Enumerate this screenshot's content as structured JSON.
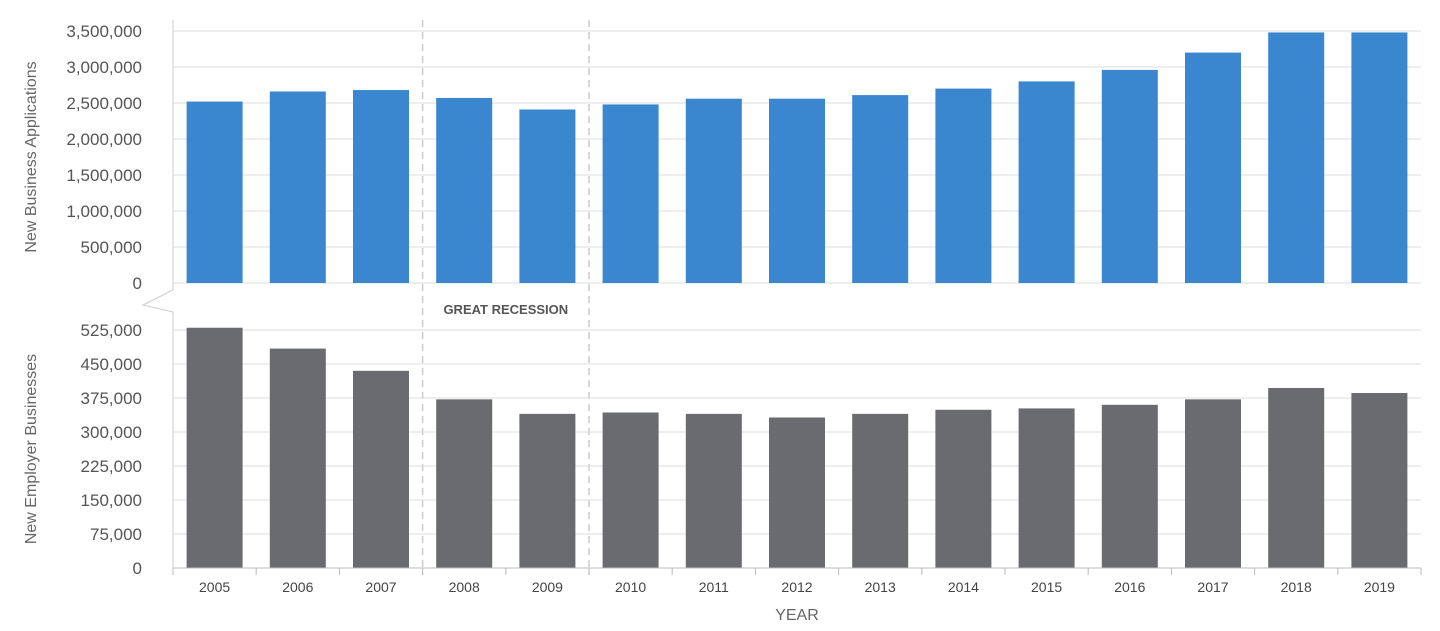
{
  "chart_data": [
    {
      "type": "bar",
      "ylabel": "New Business Applications",
      "ylim": [
        0,
        3500000
      ],
      "yticks": [
        0,
        500000,
        1000000,
        1500000,
        2000000,
        2500000,
        3000000,
        3500000
      ],
      "ytick_labels": [
        "0",
        "500,000",
        "1,000,000",
        "1,500,000",
        "2,000,000",
        "2,500,000",
        "3,000,000",
        "3,500,000"
      ],
      "categories": [
        "2005",
        "2006",
        "2007",
        "2008",
        "2009",
        "2010",
        "2011",
        "2012",
        "2013",
        "2014",
        "2015",
        "2016",
        "2017",
        "2018",
        "2019"
      ],
      "values": [
        2520000,
        2660000,
        2680000,
        2570000,
        2410000,
        2480000,
        2560000,
        2560000,
        2610000,
        2700000,
        2800000,
        2960000,
        3200000,
        3480000,
        3480000
      ],
      "color": "#3a87d0",
      "grid": true
    },
    {
      "type": "bar",
      "ylabel": "New Employer Businesses",
      "ylim": [
        0,
        525000
      ],
      "yticks": [
        0,
        75000,
        150000,
        225000,
        300000,
        375000,
        450000,
        525000
      ],
      "ytick_labels": [
        "0",
        "75,000",
        "150,000",
        "225,000",
        "300,000",
        "375,000",
        "450,000",
        "525,000"
      ],
      "categories": [
        "2005",
        "2006",
        "2007",
        "2008",
        "2009",
        "2010",
        "2011",
        "2012",
        "2013",
        "2014",
        "2015",
        "2016",
        "2017",
        "2018",
        "2019"
      ],
      "values": [
        530000,
        484000,
        435000,
        372000,
        340000,
        343000,
        340000,
        332000,
        340000,
        349000,
        352000,
        360000,
        372000,
        397000,
        386000
      ],
      "color": "#6a6b6f",
      "grid": true
    }
  ],
  "xlabel": "YEAR",
  "annotation": {
    "text": "GREAT RECESSION",
    "start": "2008",
    "end": "2009"
  },
  "colors": {
    "gridline": "#dddddd",
    "dashed": "#cccccc"
  }
}
